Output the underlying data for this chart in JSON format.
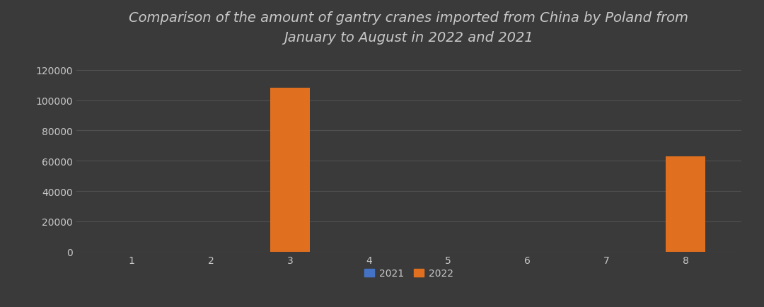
{
  "months": [
    1,
    2,
    3,
    4,
    5,
    6,
    7,
    8
  ],
  "values_2021": [
    0,
    0,
    0,
    0,
    0,
    0,
    0,
    0
  ],
  "values_2022": [
    0,
    0,
    108000,
    0,
    0,
    0,
    0,
    63000
  ],
  "color_2021": "#4472c4",
  "color_2022": "#e07020",
  "background_color": "#3a3a3a",
  "text_color": "#c8c8c8",
  "grid_color": "#505050",
  "title_line1": "Comparison of the amount of gantry cranes imported from China by Poland from",
  "title_line2": "January to August in 2022 and 2021",
  "ylim": [
    0,
    130000
  ],
  "yticks": [
    0,
    20000,
    40000,
    60000,
    80000,
    100000,
    120000
  ],
  "bar_width": 0.5,
  "legend_labels": [
    "2021",
    "2022"
  ],
  "title_fontsize": 14,
  "tick_fontsize": 10,
  "legend_fontsize": 10
}
